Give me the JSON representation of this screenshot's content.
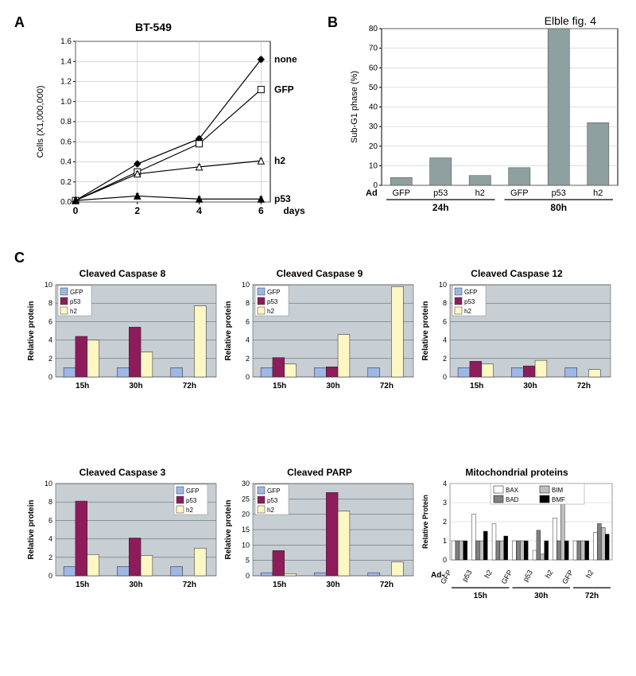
{
  "figure_label": "Elble fig. 4",
  "panelA": {
    "label": "A",
    "title": "BT-549",
    "background_color": "#ffffff",
    "grid_color": "#b0b0b0",
    "xlabel": "days",
    "ylabel": "Cells (X1,000,000)",
    "label_fontsize": 11,
    "xlim": [
      0,
      6.3
    ],
    "ylim": [
      0,
      1.6
    ],
    "xticks": [
      0,
      2,
      4,
      6
    ],
    "yticks": [
      0,
      0.2,
      0.4,
      0.6,
      0.8,
      1.0,
      1.2,
      1.4,
      1.6
    ],
    "series": [
      {
        "name": "none",
        "color": "#000000",
        "fill": "#000000",
        "marker": "diamond",
        "x": [
          0,
          2,
          4,
          6
        ],
        "y": [
          0.015,
          0.38,
          0.63,
          1.42
        ]
      },
      {
        "name": "GFP",
        "color": "#000000",
        "fill": "#ffffff",
        "marker": "square",
        "x": [
          0,
          2,
          4,
          6
        ],
        "y": [
          0.015,
          0.3,
          0.58,
          1.12
        ]
      },
      {
        "name": "h2",
        "color": "#000000",
        "fill": "#ffffff",
        "marker": "triangle",
        "x": [
          0,
          2,
          4,
          6
        ],
        "y": [
          0.015,
          0.28,
          0.35,
          0.41
        ]
      },
      {
        "name": "p53",
        "color": "#000000",
        "fill": "#000000",
        "marker": "triangle",
        "x": [
          0,
          2,
          4,
          6
        ],
        "y": [
          0.015,
          0.06,
          0.03,
          0.03
        ]
      }
    ]
  },
  "panelB": {
    "label": "B",
    "ylabel": "Sub-G1 phase (%)",
    "ylim": [
      0,
      80
    ],
    "yticks": [
      0,
      10,
      20,
      30,
      40,
      50,
      60,
      70,
      80
    ],
    "groups": [
      "24h",
      "80h"
    ],
    "categories": [
      "GFP",
      "p53",
      "h2"
    ],
    "bar_color": "#8fa0a0",
    "values_24h": [
      4,
      14,
      5
    ],
    "values_80h": [
      9,
      80,
      32
    ],
    "x_categorical_label": "Ad",
    "background_color": "#ffffff",
    "grid_color": "#c0c0c0"
  },
  "panelC": {
    "label": "C",
    "colors": {
      "GFP": "#9db8e6",
      "p53": "#8e1c5a",
      "h2": "#fdf7c4"
    },
    "legend_order": [
      "GFP",
      "p53",
      "h2"
    ],
    "time_labels": [
      "15h",
      "30h",
      "72h"
    ],
    "common": {
      "ylabel": "Relative protein",
      "bar_width": 0.25,
      "background_color": "#c7ced4",
      "gridline_color": "#3a3a3a",
      "tick_fontsize": 10
    },
    "charts": [
      {
        "title": "Cleaved Caspase 8",
        "ylim": [
          0,
          10
        ],
        "yticks": [
          0,
          2,
          4,
          6,
          8,
          10
        ],
        "values": [
          [
            1.0,
            4.4,
            4.0
          ],
          [
            1.0,
            5.4,
            2.7
          ],
          [
            1.0,
            null,
            7.7
          ]
        ]
      },
      {
        "title": "Cleaved Caspase 9",
        "ylim": [
          0,
          10
        ],
        "yticks": [
          0,
          2,
          4,
          6,
          8,
          10
        ],
        "values": [
          [
            1.0,
            2.1,
            1.4
          ],
          [
            1.0,
            1.1,
            4.6
          ],
          [
            1.0,
            null,
            9.8
          ]
        ]
      },
      {
        "title": "Cleaved Caspase 12",
        "ylim": [
          0,
          10
        ],
        "yticks": [
          0,
          2,
          4,
          6,
          8,
          10
        ],
        "values": [
          [
            1.0,
            1.7,
            1.4
          ],
          [
            1.0,
            1.2,
            1.8
          ],
          [
            1.0,
            null,
            0.8
          ]
        ]
      },
      {
        "title": "Cleaved Caspase 3",
        "ylim": [
          0,
          10
        ],
        "yticks": [
          0,
          2,
          4,
          6,
          8,
          10
        ],
        "values": [
          [
            1.0,
            8.1,
            2.3
          ],
          [
            1.0,
            4.1,
            2.2
          ],
          [
            1.0,
            null,
            3.0
          ]
        ]
      },
      {
        "title": "Cleaved PARP",
        "ylim": [
          0,
          30
        ],
        "yticks": [
          0,
          5,
          10,
          15,
          20,
          25,
          30
        ],
        "values": [
          [
            1.0,
            8.2,
            0.7
          ],
          [
            1.0,
            27.1,
            21.0
          ],
          [
            1.0,
            null,
            4.5
          ]
        ]
      }
    ],
    "mito": {
      "title": "Mitochondrial proteins",
      "ylim": [
        0,
        4
      ],
      "yticks": [
        0,
        1,
        2,
        3,
        4
      ],
      "ad_label": "Ad-",
      "time_labels": [
        "15h",
        "30h",
        "72h"
      ],
      "cond_by_time": {
        "15h": [
          "GFP",
          "p53",
          "h2"
        ],
        "30h": [
          "GFP",
          "p53",
          "h2"
        ],
        "72h": [
          "GFP",
          "h2"
        ]
      },
      "protein_order": [
        "BAX",
        "BAD",
        "BIM",
        "BMF"
      ],
      "colors": {
        "BAX": "#ffffff",
        "BIM": "#c0c0c0",
        "BAD": "#808080",
        "BMF": "#000000"
      },
      "values": {
        "15h": {
          "GFP": [
            1,
            1,
            1,
            1
          ],
          "p53": [
            2.4,
            1.0,
            1.0,
            1.5
          ],
          "h2": [
            1.9,
            1.0,
            1.0,
            1.25
          ]
        },
        "30h": {
          "GFP": [
            1,
            1,
            1,
            1
          ],
          "p53": [
            0.5,
            1.55,
            0.3,
            1.0
          ],
          "h2": [
            2.2,
            1.0,
            3.45,
            1.0
          ]
        },
        "72h": {
          "GFP": [
            1,
            1,
            1,
            1
          ],
          "h2": [
            1.45,
            1.9,
            1.7,
            1.35
          ]
        }
      }
    }
  }
}
